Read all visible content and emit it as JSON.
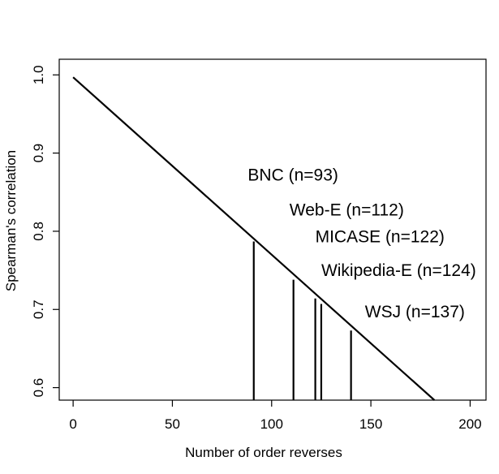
{
  "chart_data": {
    "type": "line",
    "xlabel": "Number of order reverses",
    "ylabel": "Spearman's correlation",
    "xlim": [
      -7,
      208
    ],
    "ylim": [
      0.584,
      1.02
    ],
    "x_ticks": [
      0,
      50,
      100,
      150,
      200
    ],
    "y_ticks": [
      0.6,
      0.7,
      0.8,
      0.9,
      1.0
    ],
    "x_tick_labels": [
      "0",
      "50",
      "100",
      "150",
      "200"
    ],
    "y_tick_labels": [
      "0.6",
      "0.7",
      "0.8",
      "0.9",
      "1.0"
    ],
    "line": {
      "x": [
        0,
        182
      ],
      "y": [
        0.997,
        0.584
      ]
    },
    "markers": [
      {
        "label": "BNC (n=93)",
        "x": 91,
        "y": 0.787,
        "label_x": 88,
        "label_y": 0.865
      },
      {
        "label": "Web-E (n=112)",
        "x": 111,
        "y": 0.738,
        "label_x": 109,
        "label_y": 0.82
      },
      {
        "label": "MICASE (n=122)",
        "x": 122,
        "y": 0.714,
        "label_x": 122,
        "label_y": 0.786
      },
      {
        "label": "Wikipedia-E (n=124)",
        "x": 125,
        "y": 0.707,
        "label_x": 125,
        "label_y": 0.743
      },
      {
        "label": "WSJ (n=137)",
        "x": 140,
        "y": 0.673,
        "label_x": 147,
        "label_y": 0.69
      }
    ],
    "grid": false,
    "legend": "none"
  }
}
